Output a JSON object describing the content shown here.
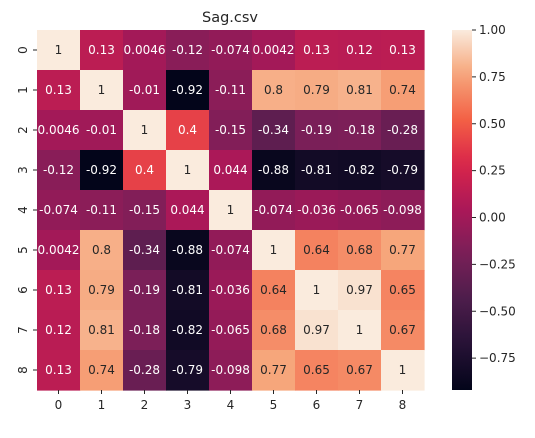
{
  "chart_data": {
    "type": "heatmap",
    "title": "Sag.csv",
    "x_categories": [
      "0",
      "1",
      "2",
      "3",
      "4",
      "5",
      "6",
      "7",
      "8"
    ],
    "y_categories": [
      "0",
      "1",
      "2",
      "3",
      "4",
      "5",
      "6",
      "7",
      "8"
    ],
    "values": [
      [
        1,
        0.13,
        0.0046,
        -0.12,
        -0.074,
        0.0042,
        0.13,
        0.12,
        0.13
      ],
      [
        0.13,
        1,
        -0.01,
        -0.92,
        -0.11,
        0.8,
        0.79,
        0.81,
        0.74
      ],
      [
        0.0046,
        -0.01,
        1,
        0.4,
        -0.15,
        -0.34,
        -0.19,
        -0.18,
        -0.28
      ],
      [
        -0.12,
        -0.92,
        0.4,
        1,
        0.044,
        -0.88,
        -0.81,
        -0.82,
        -0.79
      ],
      [
        -0.074,
        -0.11,
        -0.15,
        0.044,
        1,
        -0.074,
        -0.036,
        -0.065,
        -0.098
      ],
      [
        0.0042,
        0.8,
        -0.34,
        -0.88,
        -0.074,
        1,
        0.64,
        0.68,
        0.77
      ],
      [
        0.13,
        0.79,
        -0.19,
        -0.81,
        -0.036,
        0.64,
        1,
        0.97,
        0.65
      ],
      [
        0.12,
        0.81,
        -0.18,
        -0.82,
        -0.065,
        0.68,
        0.97,
        1,
        0.67
      ],
      [
        0.13,
        0.74,
        -0.28,
        -0.79,
        -0.098,
        0.77,
        0.65,
        0.67,
        1
      ]
    ],
    "annotations": [
      [
        "1",
        "0.13",
        "0.0046",
        "-0.12",
        "-0.074",
        "0.0042",
        "0.13",
        "0.12",
        "0.13"
      ],
      [
        "0.13",
        "1",
        "-0.01",
        "-0.92",
        "-0.11",
        "0.8",
        "0.79",
        "0.81",
        "0.74"
      ],
      [
        "0.0046",
        "-0.01",
        "1",
        "0.4",
        "-0.15",
        "-0.34",
        "-0.19",
        "-0.18",
        "-0.28"
      ],
      [
        "-0.12",
        "-0.92",
        "0.4",
        "1",
        "0.044",
        "-0.88",
        "-0.81",
        "-0.82",
        "-0.79"
      ],
      [
        "-0.074",
        "-0.11",
        "-0.15",
        "0.044",
        "1",
        "-0.074",
        "-0.036",
        "-0.065",
        "-0.098"
      ],
      [
        "0.0042",
        "0.8",
        "-0.34",
        "-0.88",
        "-0.074",
        "1",
        "0.64",
        "0.68",
        "0.77"
      ],
      [
        "0.13",
        "0.79",
        "-0.19",
        "-0.81",
        "-0.036",
        "0.64",
        "1",
        "0.97",
        "0.65"
      ],
      [
        "0.12",
        "0.81",
        "-0.18",
        "-0.82",
        "-0.065",
        "0.68",
        "0.97",
        "1",
        "0.67"
      ],
      [
        "0.13",
        "0.74",
        "-0.28",
        "-0.79",
        "-0.098",
        "0.77",
        "0.65",
        "0.67",
        "1"
      ]
    ],
    "vmin": -0.92,
    "vmax": 1,
    "colormap": "rocket",
    "colorbar_ticks": [
      {
        "value": 1.0,
        "label": "1.00"
      },
      {
        "value": 0.75,
        "label": "0.75"
      },
      {
        "value": 0.5,
        "label": "0.50"
      },
      {
        "value": 0.25,
        "label": "0.25"
      },
      {
        "value": 0.0,
        "label": "0.00"
      },
      {
        "value": -0.25,
        "label": "−0.25"
      },
      {
        "value": -0.5,
        "label": "−0.50"
      },
      {
        "value": -0.75,
        "label": "−0.75"
      }
    ],
    "grid": false,
    "legend": "colorbar-right"
  }
}
